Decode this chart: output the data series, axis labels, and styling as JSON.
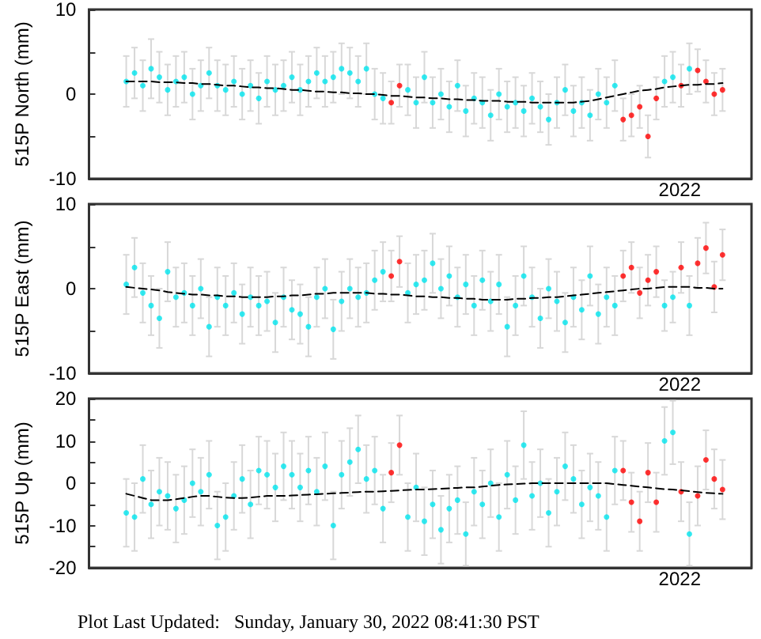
{
  "chart_data": [
    {
      "type": "scatter",
      "ylabel": "515P North (mm)",
      "ylim": [
        -10,
        10
      ],
      "yticks": [
        -10,
        {
          "value": -5,
          "label": null
        },
        0,
        {
          "value": 5,
          "label": null
        },
        10
      ],
      "annotations": [
        "2022"
      ],
      "categories": [
        null,
        null,
        null,
        null,
        null,
        null,
        null,
        null,
        null,
        null,
        null,
        null,
        null,
        null,
        null,
        null,
        null,
        null,
        null,
        null,
        null,
        null,
        null,
        null,
        null,
        null,
        null,
        null,
        null,
        null,
        null,
        null,
        null,
        null,
        null,
        null,
        null,
        null,
        null,
        null,
        null,
        null,
        null,
        null,
        null,
        null,
        null,
        null,
        null,
        null,
        null,
        null,
        null,
        null,
        null,
        null,
        null,
        null,
        null,
        null,
        null,
        null,
        null,
        null,
        null,
        null,
        null,
        null,
        null,
        null,
        null,
        null,
        null,
        null,
        null,
        null,
        null,
        null,
        null,
        null
      ],
      "series": [
        {
          "color": "#00e5ee",
          "marker": "circle",
          "values": [
            null,
            null,
            null,
            null,
            1.5,
            2.5,
            1,
            3,
            2,
            0.5,
            1.5,
            2,
            0,
            1,
            2.5,
            1,
            0.5,
            1.5,
            0,
            1,
            -0.5,
            1.5,
            0.5,
            1,
            2,
            0.5,
            1.5,
            2.5,
            1.5,
            2,
            3,
            2.5,
            1.5,
            3,
            0,
            -0.5,
            null,
            null,
            0.5,
            -1,
            2,
            -1,
            0,
            -1.5,
            1,
            -2,
            -0.5,
            -1,
            -2.5,
            0,
            -1.5,
            -1,
            -2,
            -0.5,
            -1.5,
            -3,
            -1,
            0.5,
            -2,
            -1,
            -2.5,
            0,
            -1,
            1,
            null,
            null,
            null,
            null,
            null,
            1.5,
            2,
            null,
            3,
            null,
            null,
            null,
            null,
            null,
            null,
            null
          ],
          "errors": [
            null,
            null,
            null,
            null,
            3,
            3,
            3,
            3.5,
            3,
            3,
            3,
            3,
            3,
            3,
            3,
            3,
            3,
            3,
            3,
            3,
            3,
            3,
            3,
            3,
            3,
            3,
            3,
            3,
            3,
            3,
            3,
            3,
            3,
            3,
            3,
            3,
            null,
            null,
            3,
            3,
            3,
            3,
            3,
            3,
            3,
            3,
            3,
            3,
            3,
            3,
            3,
            3,
            3,
            3,
            3,
            3,
            3,
            3,
            3,
            3,
            3,
            3,
            3,
            3,
            null,
            null,
            null,
            null,
            null,
            3,
            3,
            null,
            3,
            null,
            null,
            null,
            null,
            null,
            null,
            null
          ]
        },
        {
          "color": "#ff0000",
          "marker": "circle",
          "values": [
            null,
            null,
            null,
            null,
            null,
            null,
            null,
            null,
            null,
            null,
            null,
            null,
            null,
            null,
            null,
            null,
            null,
            null,
            null,
            null,
            null,
            null,
            null,
            null,
            null,
            null,
            null,
            null,
            null,
            null,
            null,
            null,
            null,
            null,
            null,
            null,
            -1,
            1,
            null,
            null,
            null,
            null,
            null,
            null,
            null,
            null,
            null,
            null,
            null,
            null,
            null,
            null,
            null,
            null,
            null,
            null,
            null,
            null,
            null,
            null,
            null,
            null,
            null,
            null,
            -3,
            -2.5,
            -1.5,
            -5,
            -0.5,
            null,
            null,
            1,
            null,
            2.8,
            1.5,
            0,
            0.5,
            null,
            null,
            null
          ],
          "errors": [
            null,
            null,
            null,
            null,
            null,
            null,
            null,
            null,
            null,
            null,
            null,
            null,
            null,
            null,
            null,
            null,
            null,
            null,
            null,
            null,
            null,
            null,
            null,
            null,
            null,
            null,
            null,
            null,
            null,
            null,
            null,
            null,
            null,
            null,
            null,
            null,
            2.5,
            2.5,
            null,
            null,
            null,
            null,
            null,
            null,
            null,
            null,
            null,
            null,
            null,
            null,
            null,
            null,
            null,
            null,
            null,
            null,
            null,
            null,
            null,
            null,
            null,
            null,
            null,
            null,
            2.5,
            2.5,
            2.5,
            2.5,
            2.5,
            null,
            null,
            2.5,
            null,
            2.5,
            2.5,
            2.5,
            2.5,
            null,
            null,
            null
          ]
        },
        {
          "type": "line",
          "color": "#000000",
          "marker": "none",
          "line_style": "dashed",
          "values": [
            null,
            null,
            null,
            null,
            1.5,
            1.5,
            1.5,
            1.5,
            1.4,
            1.4,
            1.4,
            1.3,
            1.3,
            1.2,
            1.2,
            1.1,
            1,
            1,
            0.9,
            0.8,
            0.8,
            0.7,
            0.7,
            0.6,
            0.5,
            0.5,
            0.4,
            0.3,
            0.3,
            0.2,
            0.2,
            0.1,
            0.1,
            0,
            0,
            -0.1,
            -0.2,
            -0.2,
            -0.3,
            -0.4,
            -0.4,
            -0.5,
            -0.5,
            -0.6,
            -0.6,
            -0.7,
            -0.7,
            -0.8,
            -0.8,
            -0.8,
            -0.9,
            -0.9,
            -0.9,
            -1,
            -1,
            -1,
            -1,
            -1,
            -1,
            -0.9,
            -0.8,
            -0.6,
            -0.4,
            -0.2,
            0,
            0.2,
            0.4,
            0.5,
            0.6,
            0.8,
            0.9,
            1,
            1.1,
            1.1,
            1.2,
            1.2,
            1.3,
            null,
            null,
            null
          ]
        }
      ]
    },
    {
      "type": "scatter",
      "ylabel": "515P East (mm)",
      "ylim": [
        -10,
        10
      ],
      "yticks": [
        -10,
        {
          "value": -5,
          "label": null
        },
        0,
        {
          "value": 5,
          "label": null
        },
        10
      ],
      "annotations": [
        "2022"
      ],
      "categories": [
        null,
        null,
        null,
        null,
        null,
        null,
        null,
        null,
        null,
        null,
        null,
        null,
        null,
        null,
        null,
        null,
        null,
        null,
        null,
        null,
        null,
        null,
        null,
        null,
        null,
        null,
        null,
        null,
        null,
        null,
        null,
        null,
        null,
        null,
        null,
        null,
        null,
        null,
        null,
        null,
        null,
        null,
        null,
        null,
        null,
        null,
        null,
        null,
        null,
        null,
        null,
        null,
        null,
        null,
        null,
        null,
        null,
        null,
        null,
        null,
        null,
        null,
        null,
        null,
        null,
        null,
        null,
        null,
        null,
        null,
        null,
        null,
        null,
        null,
        null,
        null,
        null,
        null,
        null,
        null
      ],
      "series": [
        {
          "color": "#00e5ee",
          "marker": "circle",
          "values": [
            null,
            null,
            null,
            null,
            0.5,
            2.5,
            -0.5,
            -2,
            -3.5,
            2,
            -1,
            -0.5,
            -2,
            0,
            -4.5,
            -1,
            -2,
            -0.5,
            -3,
            -1,
            -2,
            -1.5,
            -4,
            -1,
            -2.5,
            -3,
            -4.5,
            -1,
            0,
            -4.8,
            -1.5,
            0,
            -1,
            -0.5,
            1,
            2,
            null,
            null,
            -0.5,
            0.5,
            1,
            3,
            0,
            1.5,
            -1,
            0.5,
            -2,
            1,
            -1.5,
            0.5,
            -4.5,
            -2,
            1.5,
            -1,
            -3.5,
            0,
            -1.5,
            -4,
            -1,
            -2.5,
            1.5,
            -3,
            -1,
            -2,
            null,
            null,
            null,
            null,
            null,
            -2,
            -1,
            null,
            -2,
            null,
            null,
            null,
            null,
            null,
            null,
            null
          ],
          "errors": [
            null,
            null,
            null,
            null,
            3.5,
            3.5,
            3.5,
            3.5,
            3.5,
            3.5,
            3.5,
            3.5,
            3.5,
            3.5,
            3.5,
            3.5,
            3.5,
            3.5,
            3.5,
            3.5,
            3.5,
            3.5,
            3.5,
            3.5,
            3.5,
            3.5,
            3.5,
            3.5,
            3.5,
            3.5,
            3.5,
            3.5,
            3.5,
            3.5,
            3.5,
            3.5,
            null,
            null,
            3.5,
            3.5,
            3.5,
            3.5,
            3.5,
            3.5,
            3.5,
            3.5,
            3.5,
            3.5,
            3.5,
            3.5,
            3.5,
            3.5,
            3.5,
            3.5,
            3.5,
            3.5,
            3.5,
            3.5,
            3.5,
            3.5,
            3.5,
            3.5,
            3.5,
            3.5,
            null,
            null,
            null,
            null,
            null,
            3,
            3,
            null,
            3.5,
            null,
            null,
            null,
            null,
            null,
            null,
            null
          ]
        },
        {
          "color": "#ff0000",
          "marker": "circle",
          "values": [
            null,
            null,
            null,
            null,
            null,
            null,
            null,
            null,
            null,
            null,
            null,
            null,
            null,
            null,
            null,
            null,
            null,
            null,
            null,
            null,
            null,
            null,
            null,
            null,
            null,
            null,
            null,
            null,
            null,
            null,
            null,
            null,
            null,
            null,
            null,
            null,
            1.5,
            3.2,
            null,
            null,
            null,
            null,
            null,
            null,
            null,
            null,
            null,
            null,
            null,
            null,
            null,
            null,
            null,
            null,
            null,
            null,
            null,
            null,
            null,
            null,
            null,
            null,
            null,
            null,
            1.5,
            2.5,
            -0.5,
            1,
            2,
            null,
            null,
            2.5,
            null,
            3,
            4.8,
            0.2,
            4,
            null,
            null,
            null
          ],
          "errors": [
            null,
            null,
            null,
            null,
            null,
            null,
            null,
            null,
            null,
            null,
            null,
            null,
            null,
            null,
            null,
            null,
            null,
            null,
            null,
            null,
            null,
            null,
            null,
            null,
            null,
            null,
            null,
            null,
            null,
            null,
            null,
            null,
            null,
            null,
            null,
            null,
            3,
            3,
            null,
            null,
            null,
            null,
            null,
            null,
            null,
            null,
            null,
            null,
            null,
            null,
            null,
            null,
            null,
            null,
            null,
            null,
            null,
            null,
            null,
            null,
            null,
            null,
            null,
            null,
            3,
            3,
            3,
            3,
            3,
            null,
            null,
            3,
            null,
            3,
            3,
            3,
            3,
            null,
            null,
            null
          ]
        },
        {
          "type": "line",
          "color": "#000000",
          "marker": "none",
          "line_style": "dashed",
          "values": [
            null,
            null,
            null,
            null,
            0.2,
            0.1,
            0,
            -0.1,
            -0.2,
            -0.4,
            -0.5,
            -0.6,
            -0.7,
            -0.7,
            -0.8,
            -0.8,
            -0.9,
            -0.9,
            -1,
            -1,
            -1,
            -1,
            -0.9,
            -0.9,
            -0.8,
            -0.8,
            -0.7,
            -0.6,
            -0.6,
            -0.5,
            -0.5,
            -0.5,
            -0.5,
            -0.5,
            -0.6,
            -0.6,
            -0.7,
            -0.7,
            -0.8,
            -0.9,
            -0.9,
            -1,
            -1,
            -1.1,
            -1.1,
            -1.2,
            -1.2,
            -1.3,
            -1.3,
            -1.3,
            -1.3,
            -1.2,
            -1.2,
            -1.1,
            -1.1,
            -1,
            -1,
            -0.9,
            -0.8,
            -0.7,
            -0.6,
            -0.5,
            -0.4,
            -0.3,
            -0.2,
            -0.1,
            0,
            0,
            0.1,
            0.2,
            0.2,
            0.2,
            0.2,
            0.1,
            0.1,
            0,
            0,
            null,
            null,
            null
          ]
        }
      ]
    },
    {
      "type": "scatter",
      "ylabel": "515P Up (mm)",
      "ylim": [
        -20,
        20
      ],
      "yticks": [
        -20,
        {
          "value": -15,
          "label": null
        },
        -10,
        {
          "value": -5,
          "label": null
        },
        0,
        {
          "value": 5,
          "label": null
        },
        10,
        {
          "value": 15,
          "label": null
        },
        20
      ],
      "annotations": [
        "2022",
        "Plot Last Updated:   Sunday, January 30, 2022 08:41:30 PST"
      ],
      "categories": [
        null,
        null,
        null,
        null,
        null,
        null,
        null,
        null,
        null,
        null,
        null,
        null,
        null,
        null,
        null,
        null,
        null,
        null,
        null,
        null,
        null,
        null,
        null,
        null,
        null,
        null,
        null,
        null,
        null,
        null,
        null,
        null,
        null,
        null,
        null,
        null,
        null,
        null,
        null,
        null,
        null,
        null,
        null,
        null,
        null,
        null,
        null,
        null,
        null,
        null,
        null,
        null,
        null,
        null,
        null,
        null,
        null,
        null,
        null,
        null,
        null,
        null,
        null,
        null,
        null,
        null,
        null,
        null,
        null,
        null,
        null,
        null,
        null,
        null,
        null,
        null,
        null,
        null,
        null,
        null
      ],
      "series": [
        {
          "color": "#00e5ee",
          "marker": "circle",
          "values": [
            null,
            null,
            null,
            null,
            -7,
            -8,
            1,
            -5,
            -2,
            -3,
            -6,
            -4,
            0,
            -2,
            2,
            -10,
            -8,
            -3,
            1,
            -5,
            3,
            2,
            -1,
            4,
            2,
            -1,
            3,
            -2,
            4,
            -10,
            2,
            5,
            8,
            1,
            3,
            -6,
            null,
            null,
            -8,
            -1,
            -9,
            -5,
            -11,
            -6,
            -4,
            -12,
            -2,
            -5,
            0,
            -8,
            2,
            -4,
            9,
            -3,
            0,
            -7,
            -2,
            4,
            1,
            -5,
            -1,
            -3,
            -8,
            3,
            null,
            null,
            null,
            null,
            null,
            10,
            12,
            null,
            -12,
            null,
            null,
            null,
            null,
            null,
            null,
            null
          ],
          "errors": [
            null,
            null,
            null,
            null,
            8,
            8,
            8,
            8,
            8,
            8,
            8,
            8,
            8,
            8,
            8,
            8,
            8,
            8,
            8,
            8,
            8,
            8,
            8,
            8,
            8,
            8,
            8,
            8,
            8,
            8,
            8,
            8,
            8,
            8,
            8,
            8,
            null,
            null,
            8,
            8,
            8,
            8,
            8,
            8,
            8,
            7.5,
            8,
            8,
            8,
            8,
            8,
            8,
            8,
            8,
            8,
            8,
            8,
            8,
            8,
            8,
            8,
            8,
            8,
            8,
            null,
            null,
            null,
            null,
            null,
            8,
            7.5,
            null,
            7.5,
            null,
            null,
            null,
            null,
            null,
            null,
            null
          ]
        },
        {
          "color": "#ff0000",
          "marker": "circle",
          "values": [
            null,
            null,
            null,
            null,
            null,
            null,
            null,
            null,
            null,
            null,
            null,
            null,
            null,
            null,
            null,
            null,
            null,
            null,
            null,
            null,
            null,
            null,
            null,
            null,
            null,
            null,
            null,
            null,
            null,
            null,
            null,
            null,
            null,
            null,
            null,
            null,
            2.5,
            9,
            null,
            null,
            null,
            null,
            null,
            null,
            null,
            null,
            null,
            null,
            null,
            null,
            null,
            null,
            null,
            null,
            null,
            null,
            null,
            null,
            null,
            null,
            null,
            null,
            null,
            null,
            3,
            -4.5,
            -9,
            2.5,
            -4.5,
            null,
            null,
            -2,
            null,
            -3,
            5.5,
            1,
            -1.5,
            null,
            null,
            null
          ],
          "errors": [
            null,
            null,
            null,
            null,
            null,
            null,
            null,
            null,
            null,
            null,
            null,
            null,
            null,
            null,
            null,
            null,
            null,
            null,
            null,
            null,
            null,
            null,
            null,
            null,
            null,
            null,
            null,
            null,
            null,
            null,
            null,
            null,
            null,
            null,
            null,
            null,
            7,
            7,
            null,
            null,
            null,
            null,
            null,
            null,
            null,
            null,
            null,
            null,
            null,
            null,
            null,
            null,
            null,
            null,
            null,
            null,
            null,
            null,
            null,
            null,
            null,
            null,
            null,
            null,
            7,
            7,
            7,
            7,
            7,
            null,
            null,
            7,
            null,
            7,
            7,
            7,
            7,
            null,
            null,
            null
          ]
        },
        {
          "type": "line",
          "color": "#000000",
          "marker": "none",
          "line_style": "dashed",
          "values": [
            null,
            null,
            null,
            null,
            -2.5,
            -3,
            -3.5,
            -4,
            -4,
            -4,
            -3.8,
            -3.5,
            -3.2,
            -3,
            -3,
            -3.2,
            -3.4,
            -3.5,
            -3.5,
            -3.4,
            -3.2,
            -3,
            -3,
            -3,
            -2.9,
            -2.8,
            -2.7,
            -2.6,
            -2.5,
            -2.4,
            -2.3,
            -2.2,
            -2.1,
            -2,
            -2,
            -1.9,
            -1.8,
            -1.7,
            -1.6,
            -1.5,
            -1.5,
            -1.4,
            -1.3,
            -1.2,
            -1.1,
            -1,
            -1,
            -0.8,
            -0.6,
            -0.4,
            -0.3,
            -0.2,
            -0.1,
            0,
            0,
            0,
            0,
            0,
            0,
            0,
            0,
            0,
            0,
            -0.2,
            -0.4,
            -0.6,
            -0.8,
            -1,
            -1.2,
            -1.4,
            -1.5,
            -1.7,
            -1.9,
            -2.1,
            -2.3,
            -2.4,
            -2.5,
            null,
            null,
            null
          ]
        }
      ]
    }
  ]
}
